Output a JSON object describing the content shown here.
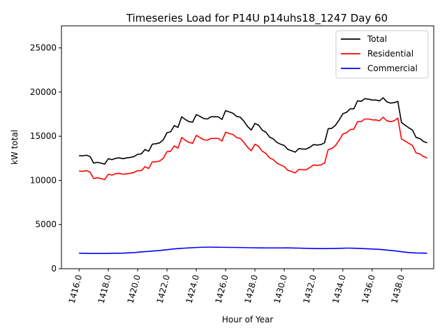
{
  "chart_data": {
    "type": "line",
    "title": "Timeseries Load for P14U p14uhs18_1247  Day 60",
    "xlabel": "Hour of Year",
    "ylabel": "kW total",
    "xlim": [
      1414.8,
      1440.2
    ],
    "ylim": [
      0,
      27500
    ],
    "xticks": [
      1416,
      1418,
      1420,
      1422,
      1424,
      1426,
      1428,
      1430,
      1432,
      1434,
      1436,
      1438
    ],
    "xtick_labels": [
      "1416.0",
      "1418.0",
      "1420.0",
      "1422.0",
      "1424.0",
      "1426.0",
      "1428.0",
      "1430.0",
      "1432.0",
      "1434.0",
      "1436.0",
      "1438.0"
    ],
    "yticks": [
      0,
      5000,
      10000,
      15000,
      20000,
      25000
    ],
    "ytick_labels": [
      "0",
      "5000",
      "10000",
      "15000",
      "20000",
      "25000"
    ],
    "legend_position": "top-right",
    "x_start": 1416,
    "x_step": 0.25,
    "series": [
      {
        "name": "Total",
        "color": "#000000",
        "values": [
          12800,
          12780,
          12850,
          12700,
          11950,
          12050,
          11950,
          11850,
          12450,
          12350,
          12500,
          12550,
          12450,
          12550,
          12600,
          12700,
          12950,
          13000,
          13500,
          13300,
          14100,
          14150,
          14250,
          14600,
          15400,
          15500,
          16200,
          16000,
          17200,
          16900,
          16650,
          16600,
          17450,
          17250,
          17000,
          16950,
          17200,
          17200,
          17200,
          16900,
          17900,
          17750,
          17600,
          17250,
          17150,
          16700,
          16100,
          15700,
          16450,
          16250,
          15700,
          15450,
          14900,
          14700,
          14300,
          14100,
          13950,
          13500,
          13350,
          13200,
          13600,
          13550,
          13550,
          13750,
          14050,
          14000,
          14050,
          14250,
          15850,
          15900,
          16250,
          16850,
          17550,
          17700,
          18100,
          18100,
          19000,
          18950,
          19250,
          19200,
          19100,
          19100,
          19000,
          19350,
          18900,
          18750,
          18800,
          18950,
          16550,
          16250,
          15950,
          15700,
          14850,
          14750,
          14400,
          14250
        ]
      },
      {
        "name": "Residential",
        "color": "#ff0000",
        "values": [
          11050,
          11030,
          11100,
          10950,
          10200,
          10300,
          10200,
          10100,
          10700,
          10600,
          10750,
          10800,
          10700,
          10750,
          10800,
          10900,
          11100,
          11100,
          11550,
          11350,
          12100,
          12100,
          12200,
          12500,
          13250,
          13300,
          13900,
          13650,
          14850,
          14550,
          14300,
          14200,
          15100,
          14850,
          14600,
          14550,
          14750,
          14750,
          14750,
          14450,
          15450,
          15300,
          15200,
          14850,
          14750,
          14300,
          13750,
          13350,
          14100,
          13850,
          13300,
          13050,
          12550,
          12350,
          11950,
          11750,
          11550,
          11150,
          11000,
          10850,
          11250,
          11200,
          11200,
          11450,
          11750,
          11700,
          11750,
          11950,
          13500,
          13600,
          13950,
          14550,
          15250,
          15400,
          15750,
          15800,
          16650,
          16650,
          16950,
          16950,
          16850,
          16850,
          16750,
          17150,
          16750,
          16650,
          16750,
          17050,
          14700,
          14450,
          14200,
          13950,
          13100,
          13000,
          12700,
          12550
        ]
      },
      {
        "name": "Commercial",
        "color": "#0000ff",
        "values": [
          1750,
          1740,
          1730,
          1720,
          1720,
          1720,
          1720,
          1720,
          1730,
          1740,
          1750,
          1750,
          1760,
          1780,
          1800,
          1820,
          1860,
          1900,
          1930,
          1960,
          2000,
          2030,
          2060,
          2110,
          2150,
          2200,
          2250,
          2280,
          2310,
          2330,
          2360,
          2380,
          2400,
          2420,
          2430,
          2440,
          2440,
          2430,
          2430,
          2420,
          2420,
          2410,
          2410,
          2400,
          2400,
          2390,
          2380,
          2370,
          2370,
          2360,
          2360,
          2350,
          2350,
          2350,
          2350,
          2350,
          2360,
          2360,
          2350,
          2340,
          2330,
          2320,
          2310,
          2300,
          2290,
          2280,
          2280,
          2280,
          2290,
          2290,
          2300,
          2310,
          2320,
          2330,
          2330,
          2320,
          2310,
          2290,
          2270,
          2250,
          2230,
          2210,
          2190,
          2150,
          2110,
          2070,
          2030,
          1980,
          1920,
          1870,
          1830,
          1800,
          1780,
          1770,
          1760,
          1750
        ]
      }
    ]
  }
}
